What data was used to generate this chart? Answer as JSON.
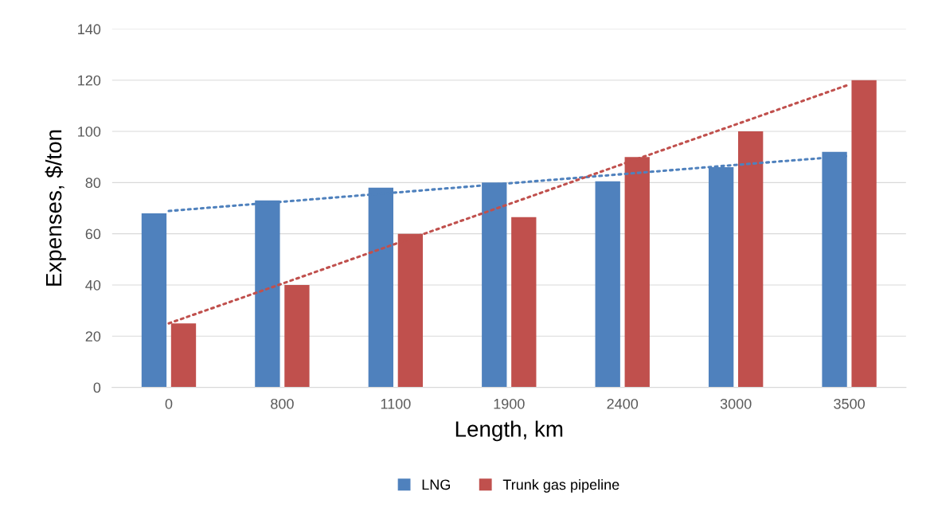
{
  "chart_data": {
    "type": "bar",
    "xlabel": "Length, km",
    "ylabel": "Expenses, $/ton",
    "categories": [
      "0",
      "800",
      "1100",
      "1900",
      "2400",
      "3000",
      "3500"
    ],
    "series": [
      {
        "name": "LNG",
        "color": "#4f81bd",
        "values": [
          68,
          73,
          78,
          80,
          80.5,
          86,
          92
        ]
      },
      {
        "name": "Trunk gas pipeline",
        "color": "#c0504d",
        "values": [
          25,
          40,
          60,
          66.5,
          90,
          100,
          120
        ]
      },
      {
        "type": "line",
        "color": "#4f81bd",
        "line_style": "dotted",
        "values": [
          68.9,
          72.5,
          76.1,
          79.7,
          83.3,
          86.9,
          90.4
        ]
      },
      {
        "type": "line",
        "color": "#c0504d",
        "line_style": "dotted",
        "values": [
          25.0,
          40.5,
          56.1,
          71.6,
          87.2,
          102.7,
          118.3
        ]
      }
    ],
    "ylim": [
      0,
      140
    ],
    "yticks": [
      0,
      20,
      40,
      60,
      80,
      100,
      120,
      140
    ],
    "grid": "y",
    "legend": "bottom"
  }
}
